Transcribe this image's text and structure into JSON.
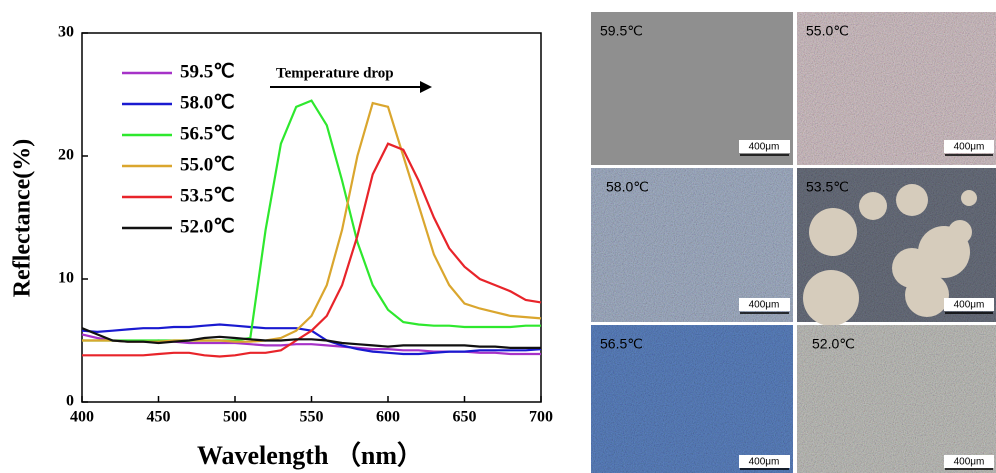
{
  "chart_data": {
    "type": "line",
    "ylabel": "Reflectance(%)",
    "xlabel": "Wavelength （nm）",
    "annotation": "Temperature drop",
    "x": [
      400,
      410,
      420,
      430,
      440,
      450,
      460,
      470,
      480,
      490,
      500,
      510,
      520,
      530,
      540,
      550,
      560,
      570,
      580,
      590,
      600,
      610,
      620,
      630,
      640,
      650,
      660,
      670,
      680,
      690,
      700
    ],
    "xlim": [
      400,
      700
    ],
    "xticks": [
      400,
      450,
      500,
      550,
      600,
      650,
      700
    ],
    "ylim": [
      0,
      30
    ],
    "yticks": [
      0,
      10,
      20,
      30
    ],
    "series": [
      {
        "name": "59.5℃",
        "color": "#a632c8",
        "values": [
          5.5,
          5.2,
          5.0,
          4.9,
          4.9,
          5.0,
          4.9,
          4.8,
          4.8,
          4.8,
          4.8,
          4.7,
          4.6,
          4.6,
          4.7,
          4.7,
          4.6,
          4.5,
          4.4,
          4.3,
          4.3,
          4.2,
          4.2,
          4.1,
          4.1,
          4.1,
          4.0,
          4.0,
          3.9,
          3.9,
          3.9
        ]
      },
      {
        "name": "58.0℃",
        "color": "#1a1ad0",
        "values": [
          5.8,
          5.7,
          5.8,
          5.9,
          6.0,
          6.0,
          6.1,
          6.1,
          6.2,
          6.3,
          6.2,
          6.1,
          6.0,
          6.0,
          6.0,
          5.8,
          5.0,
          4.6,
          4.3,
          4.1,
          4.0,
          3.9,
          3.9,
          4.0,
          4.1,
          4.1,
          4.2,
          4.2,
          4.2,
          4.2,
          4.3
        ]
      },
      {
        "name": "56.5℃",
        "color": "#2ee82e",
        "values": [
          5.0,
          5.0,
          5.0,
          5.0,
          5.0,
          5.0,
          5.0,
          5.0,
          5.0,
          5.0,
          5.0,
          5.2,
          14,
          21,
          24,
          24.5,
          22.5,
          18,
          13,
          9.5,
          7.5,
          6.5,
          6.3,
          6.2,
          6.2,
          6.1,
          6.1,
          6.1,
          6.1,
          6.2,
          6.2
        ]
      },
      {
        "name": "55.0℃",
        "color": "#daa62e",
        "values": [
          5.0,
          5.0,
          5.0,
          4.9,
          4.9,
          4.9,
          5.0,
          5.0,
          5.0,
          5.0,
          4.9,
          4.9,
          5.0,
          5.2,
          5.8,
          7.0,
          9.5,
          14,
          20,
          24.3,
          24.0,
          20,
          16,
          12,
          9.5,
          8.0,
          7.6,
          7.3,
          7.0,
          6.9,
          6.8
        ]
      },
      {
        "name": "53.5℃",
        "color": "#e8242a",
        "values": [
          3.8,
          3.8,
          3.8,
          3.8,
          3.8,
          3.9,
          4.0,
          4.0,
          3.8,
          3.7,
          3.8,
          4.0,
          4.0,
          4.2,
          5.0,
          5.8,
          7.0,
          9.5,
          13.5,
          18.5,
          21,
          20.5,
          18,
          15,
          12.5,
          11,
          10,
          9.5,
          9,
          8.3,
          8.1
        ]
      },
      {
        "name": "52.0℃",
        "color": "#111111",
        "values": [
          6.0,
          5.5,
          5.0,
          4.9,
          4.9,
          4.8,
          4.9,
          5.0,
          5.2,
          5.3,
          5.2,
          5.1,
          5.0,
          5.0,
          5.1,
          5.1,
          5.0,
          4.8,
          4.7,
          4.6,
          4.5,
          4.6,
          4.6,
          4.6,
          4.6,
          4.6,
          4.5,
          4.5,
          4.4,
          4.4,
          4.4
        ]
      }
    ]
  },
  "panels": [
    {
      "label": "59.5℃",
      "scale": "400μm"
    },
    {
      "label": "55.0℃",
      "scale": "400μm"
    },
    {
      "label": "58.0℃",
      "scale": "400μm"
    },
    {
      "label": "53.5℃",
      "scale": "400μm"
    },
    {
      "label": "56.5℃",
      "scale": "400μm"
    },
    {
      "label": "52.0℃",
      "scale": "400μm"
    }
  ]
}
